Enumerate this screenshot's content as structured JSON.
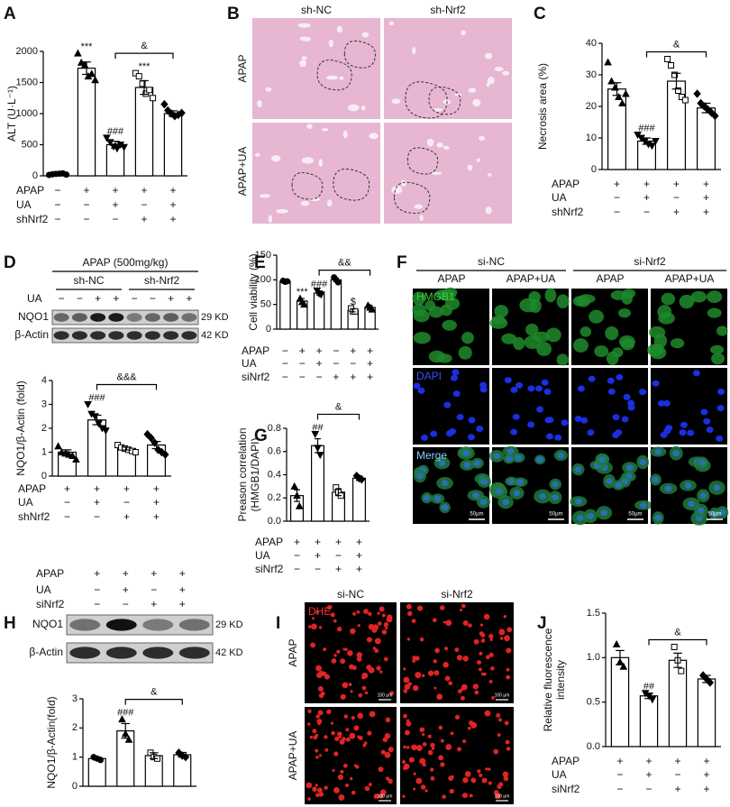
{
  "chart_data": [
    {
      "type": "bar",
      "panel": "A",
      "ylabel": "ALT (U·L⁻¹)",
      "ylim": [
        0,
        2000
      ],
      "yticks": [
        0,
        500,
        1000,
        1500,
        2000
      ],
      "color": "#ffffff",
      "edge_color": "#000000",
      "values": [
        30,
        1730,
        500,
        1420,
        1000
      ],
      "errors": [
        15,
        100,
        55,
        110,
        45
      ],
      "points": [
        [
          15,
          25,
          30,
          35,
          40,
          20
        ],
        [
          1970,
          1820,
          1780,
          1600,
          1640,
          1540
        ],
        [
          610,
          540,
          470,
          440,
          500,
          460
        ],
        [
          1650,
          1600,
          1480,
          1320,
          1380,
          1250
        ],
        [
          1150,
          1050,
          1000,
          960,
          980,
          1010
        ]
      ],
      "markers": [
        "circle",
        "triangle",
        "triangle-down",
        "square",
        "diamond"
      ],
      "annotations": [
        null,
        "***",
        "###",
        "***",
        null
      ],
      "bracket": {
        "text": "&",
        "from": 2,
        "to": 4
      },
      "conditions": [
        {
          "name": "APAP",
          "signs": [
            "−",
            "+",
            "+",
            "+",
            "+"
          ]
        },
        {
          "name": "UA",
          "signs": [
            "−",
            "−",
            "+",
            "−",
            "+"
          ]
        },
        {
          "name": "shNrf2",
          "signs": [
            "−",
            "−",
            "−",
            "+",
            "+"
          ]
        }
      ]
    },
    {
      "type": "bar",
      "panel": "C",
      "ylabel": "Necrosis area (%)",
      "ylim": [
        0,
        40
      ],
      "yticks": [
        0,
        10,
        20,
        30,
        40
      ],
      "color": "#ffffff",
      "edge_color": "#000000",
      "values": [
        25.5,
        9,
        28,
        19.5
      ],
      "errors": [
        2,
        1,
        2.5,
        1.5
      ],
      "points": [
        [
          34,
          28,
          26,
          23,
          21,
          24
        ],
        [
          11,
          10,
          9,
          8,
          7.5,
          9
        ],
        [
          35,
          33,
          30,
          25,
          23,
          22
        ],
        [
          24,
          21,
          20,
          19,
          18,
          17
        ]
      ],
      "markers": [
        "triangle",
        "triangle-down",
        "square",
        "diamond"
      ],
      "annotations": [
        null,
        "###",
        null,
        null
      ],
      "bracket": {
        "text": "&",
        "from": 1,
        "to": 3
      },
      "conditions": [
        {
          "name": "APAP",
          "signs": [
            "+",
            "+",
            "+",
            "+"
          ]
        },
        {
          "name": "UA",
          "signs": [
            "−",
            "+",
            "−",
            "+"
          ]
        },
        {
          "name": "shNrf2",
          "signs": [
            "−",
            "−",
            "+",
            "+"
          ]
        }
      ]
    },
    {
      "type": "bar",
      "ylabel": "NQO1/β-Actin (fold)",
      "ylim": [
        0,
        4
      ],
      "yticks": [
        0,
        1,
        2,
        3,
        4
      ],
      "color": "#ffffff",
      "edge_color": "#000000",
      "values": [
        1.0,
        2.35,
        1.15,
        1.3
      ],
      "errors": [
        0.1,
        0.2,
        0.06,
        0.15
      ],
      "points": [
        [
          1.25,
          1.0,
          0.95,
          0.9,
          0.85,
          0.7
        ],
        [
          3.0,
          2.6,
          2.5,
          2.2,
          2.0,
          1.9
        ],
        [
          1.3,
          1.2,
          1.15,
          1.1,
          1.05,
          1.0
        ],
        [
          1.75,
          1.6,
          1.4,
          1.1,
          1.0,
          0.9
        ]
      ],
      "markers": [
        "triangle",
        "triangle-down",
        "square",
        "diamond"
      ],
      "annotations": [
        null,
        "###",
        null,
        null
      ],
      "bracket": {
        "text": "&&&",
        "from": 1,
        "to": 3
      },
      "conditions": [
        {
          "name": "APAP",
          "signs": [
            "+",
            "+",
            "+",
            "+"
          ]
        },
        {
          "name": "UA",
          "signs": [
            "−",
            "+",
            "−",
            "+"
          ]
        },
        {
          "name": "shNrf2",
          "signs": [
            "−",
            "−",
            "+",
            "+"
          ]
        }
      ]
    },
    {
      "type": "bar",
      "panel": "E",
      "ylabel": "Cell viability (%)",
      "ylim": [
        0,
        150
      ],
      "yticks": [
        0,
        50,
        100,
        150
      ],
      "color": "#ffffff",
      "edge_color": "#000000",
      "values": [
        97,
        57,
        73,
        100,
        38,
        44
      ],
      "errors": [
        1.5,
        5,
        4,
        4,
        3,
        4
      ],
      "points": [
        [
          98,
          96,
          97
        ],
        [
          62,
          55,
          50
        ],
        [
          78,
          72,
          70
        ],
        [
          105,
          100,
          95
        ],
        [
          42,
          36,
          36
        ],
        [
          48,
          44,
          40
        ]
      ],
      "markers": [
        "circle",
        "triangle",
        "triangle-down",
        "circle",
        "square",
        "triangle"
      ],
      "annotations": [
        null,
        "***",
        "###",
        null,
        "$",
        null
      ],
      "bracket": {
        "text": "&&",
        "from": 2,
        "to": 5
      },
      "conditions": [
        {
          "name": "APAP",
          "signs": [
            "−",
            "+",
            "+",
            "−",
            "+",
            "+"
          ]
        },
        {
          "name": "UA",
          "signs": [
            "−",
            "−",
            "+",
            "−",
            "−",
            "+"
          ]
        },
        {
          "name": "siNrf2",
          "signs": [
            "−",
            "−",
            "−",
            "+",
            "+",
            "+"
          ]
        }
      ]
    },
    {
      "type": "bar",
      "panel": "G",
      "ylabel": [
        "Preason correlation",
        "(HMGB1/DAPI)"
      ],
      "ylim": [
        0,
        0.8
      ],
      "yticks": [
        {
          "value": 0,
          "label": "0.0"
        },
        0.2,
        0.4,
        0.6,
        0.8
      ],
      "color": "#ffffff",
      "edge_color": "#000000",
      "values": [
        0.22,
        0.65,
        0.25,
        0.37
      ],
      "errors": [
        0.05,
        0.06,
        0.03,
        0.02
      ],
      "points": [
        [
          0.3,
          0.22,
          0.13
        ],
        [
          0.75,
          0.63,
          0.57
        ],
        [
          0.29,
          0.25,
          0.22
        ],
        [
          0.39,
          0.37,
          0.36
        ]
      ],
      "markers": [
        "triangle",
        "triangle-down",
        "square",
        "diamond"
      ],
      "annotations": [
        null,
        "##",
        null,
        null
      ],
      "bracket": {
        "text": "&",
        "from": 1,
        "to": 3
      },
      "conditions": [
        {
          "name": "APAP",
          "signs": [
            "+",
            "+",
            "+",
            "+"
          ]
        },
        {
          "name": "UA",
          "signs": [
            "−",
            "+",
            "−",
            "+"
          ]
        },
        {
          "name": "siNrf2",
          "signs": [
            "−",
            "−",
            "+",
            "+"
          ]
        }
      ]
    },
    {
      "type": "bar",
      "ylabel": "NQO1/β-Actin(fold)",
      "ylim": [
        0,
        3
      ],
      "yticks": [
        0,
        1,
        2,
        3
      ],
      "color": "#ffffff",
      "edge_color": "#000000",
      "values": [
        0.95,
        1.9,
        1.05,
        1.08
      ],
      "errors": [
        0.05,
        0.25,
        0.1,
        0.08
      ],
      "points": [
        [
          1.0,
          0.95,
          0.9
        ],
        [
          2.3,
          1.8,
          1.6
        ],
        [
          1.15,
          1.0,
          0.95
        ],
        [
          1.15,
          1.05,
          1.0
        ]
      ],
      "markers": [
        "circle",
        "triangle",
        "square",
        "diamond"
      ],
      "annotations": [
        null,
        "###",
        null,
        null
      ],
      "bracket": {
        "text": "&",
        "from": 1,
        "to": 3
      },
      "conditions": [
        {
          "name": "APAP",
          "signs": [
            "+",
            "+",
            "+",
            "+"
          ]
        },
        {
          "name": "UA",
          "signs": [
            "−",
            "+",
            "−",
            "+"
          ]
        },
        {
          "name": "siNrf2",
          "signs": [
            "−",
            "−",
            "+",
            "+"
          ]
        }
      ]
    },
    {
      "type": "bar",
      "panel": "J",
      "ylabel": [
        "Relative fluorescence",
        "intensity"
      ],
      "ylim": [
        0,
        1.5
      ],
      "yticks": [
        {
          "value": 0,
          "label": "0.0"
        },
        0.5,
        {
          "value": 1,
          "label": "1.0"
        },
        1.5
      ],
      "color": "#ffffff",
      "edge_color": "#000000",
      "values": [
        1.0,
        0.57,
        0.97,
        0.76
      ],
      "errors": [
        0.08,
        0.03,
        0.08,
        0.04
      ],
      "points": [
        [
          1.15,
          0.95,
          0.9
        ],
        [
          0.6,
          0.57,
          0.53
        ],
        [
          1.12,
          0.97,
          0.85
        ],
        [
          0.8,
          0.76,
          0.72
        ]
      ],
      "markers": [
        "triangle",
        "triangle-down",
        "square",
        "diamond"
      ],
      "annotations": [
        null,
        "##",
        null,
        null
      ],
      "bracket": {
        "text": "&",
        "from": 1,
        "to": 3
      },
      "conditions": [
        {
          "name": "APAP",
          "signs": [
            "+",
            "+",
            "+",
            "+"
          ]
        },
        {
          "name": "UA",
          "signs": [
            "−",
            "+",
            "−",
            "+"
          ]
        },
        {
          "name": "siNrf2",
          "signs": [
            "−",
            "−",
            "+",
            "+"
          ]
        }
      ]
    }
  ],
  "images": [
    {
      "panel": "B",
      "columns": [
        "sh-NC",
        "sh-Nrf2"
      ],
      "rows": [
        "APAP",
        "APAP+UA"
      ]
    },
    {
      "panel": "F",
      "groups": [
        "si-NC",
        "si-Nrf2"
      ],
      "columns": [
        "APAP",
        "APAP+UA",
        "APAP",
        "APAP+UA"
      ],
      "channels": [
        "HMGB1",
        "DAPI",
        "Merge"
      ],
      "scale_bar": "50μm"
    },
    {
      "panel": "I",
      "columns": [
        "si-NC",
        "si-Nrf2"
      ],
      "rows": [
        "APAP",
        "APAP+UA"
      ],
      "stain": "DHE",
      "scale_bar": "100 μm"
    }
  ],
  "blots": [
    {
      "panel": "D",
      "treatment": "APAP (500mg/kg)",
      "groups": [
        "sh-NC",
        "sh-Nrf2"
      ],
      "row": {
        "name": "UA",
        "signs": [
          "−",
          "−",
          "+",
          "+",
          "−",
          "−",
          "+",
          "+"
        ]
      },
      "bands": [
        {
          "name": "NQO1",
          "size": "29 KD"
        },
        {
          "name": "β-Actin",
          "size": "42 KD"
        }
      ]
    },
    {
      "panel": "H",
      "bands": [
        {
          "name": "NQO1",
          "size": "29 KD"
        },
        {
          "name": "β-Actin",
          "size": "42 KD"
        }
      ]
    }
  ]
}
